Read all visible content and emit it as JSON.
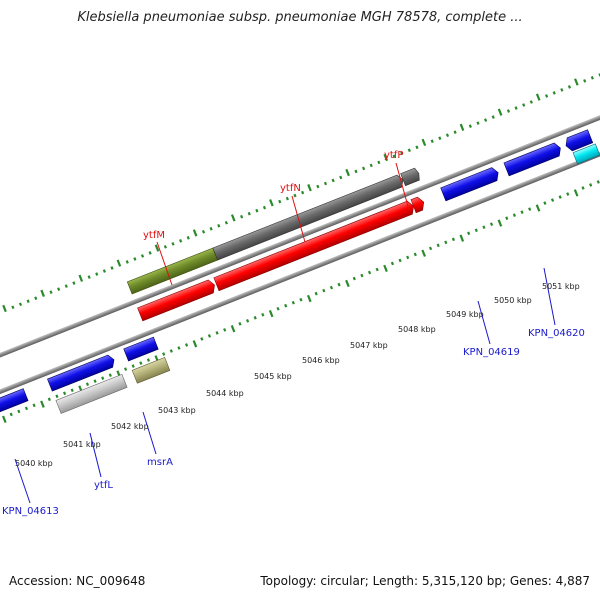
{
  "title": "Klebsiella pneumoniae subsp. pneumoniae MGH 78578, complete ...",
  "footer": {
    "accession": "Accession: NC_009648",
    "summary": "Topology: circular; Length: 5,315,120 bp; Genes: 4,887"
  },
  "colors": {
    "tick_green": "#2a8a2a",
    "backbone": "#8a8a8a",
    "label_red": "#dd1111",
    "label_blue": "#1a1acc"
  },
  "scale_labels": [
    "5040 kbp",
    "5041 kbp",
    "5042 kbp",
    "5043 kbp",
    "5044 kbp",
    "5045 kbp",
    "5046 kbp",
    "5047 kbp",
    "5048 kbp",
    "5049 kbp",
    "5050 kbp",
    "5051 kbp"
  ],
  "gene_labels": [
    {
      "id": "ytfM",
      "text": "ytfM",
      "color": "#dd1111"
    },
    {
      "id": "ytfN",
      "text": "ytfN",
      "color": "#dd1111"
    },
    {
      "id": "ytfP",
      "text": "ytfP",
      "color": "#dd1111"
    },
    {
      "id": "KPN_04619",
      "text": "KPN_04619",
      "color": "#1a1acc"
    },
    {
      "id": "KPN_04620",
      "text": "KPN_04620",
      "color": "#1a1acc"
    },
    {
      "id": "KPN_04613",
      "text": "KPN_04613",
      "color": "#1a1acc"
    },
    {
      "id": "ytfL",
      "text": "ytfL",
      "color": "#1a1acc"
    },
    {
      "id": "msrA",
      "text": "msrA",
      "color": "#1a1acc"
    }
  ]
}
